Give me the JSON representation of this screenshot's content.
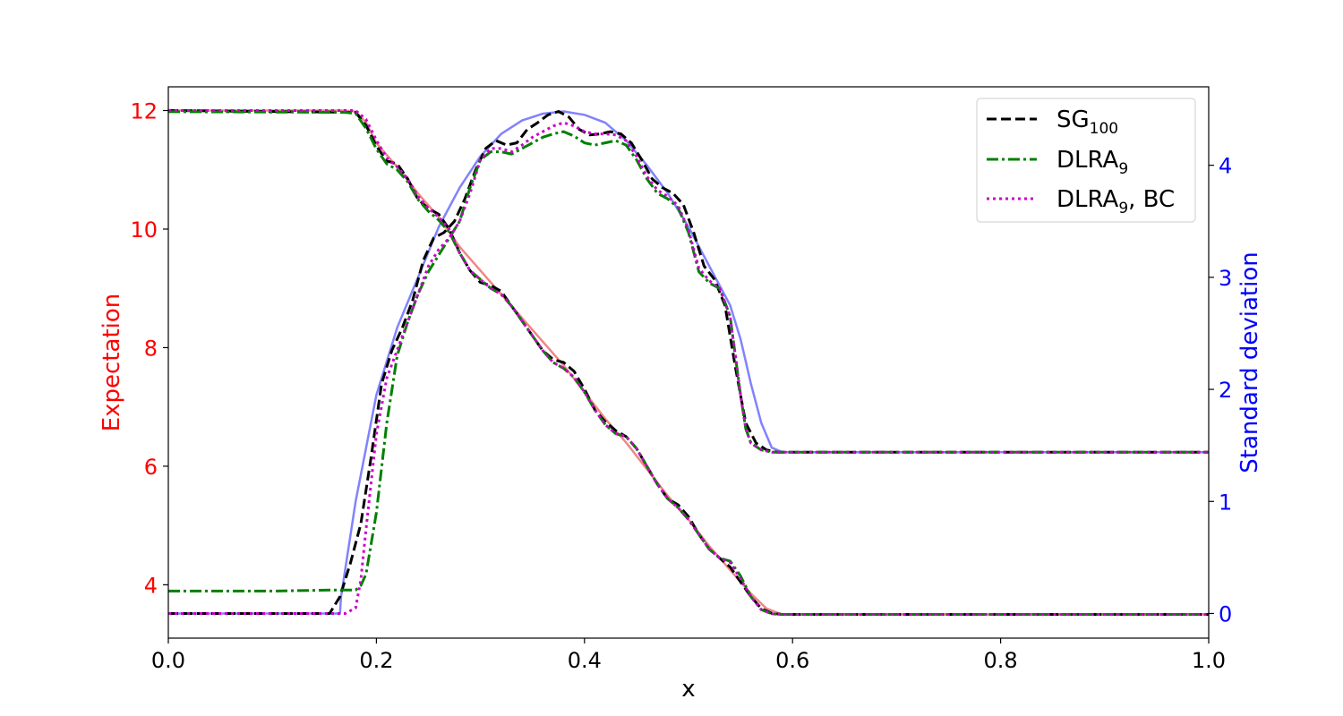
{
  "chart_data": {
    "type": "line",
    "xlabel": "x",
    "ylabel_left": "Expectation",
    "ylabel_right": "Standard deviation",
    "xlim": [
      0.0,
      1.0
    ],
    "ylim_left": [
      3.1,
      12.4
    ],
    "ylim_right": [
      -0.22,
      4.7
    ],
    "x_ticks": [
      "0.0",
      "0.2",
      "0.4",
      "0.6",
      "0.8",
      "1.0"
    ],
    "left_ticks": [
      "4",
      "6",
      "8",
      "10",
      "12"
    ],
    "right_ticks": [
      "0",
      "1",
      "2",
      "3",
      "4"
    ],
    "grid": false,
    "legend_position": "upper right",
    "colors": {
      "left_axis": "#ff0000",
      "right_axis": "#0000ff",
      "reference_expectation": "#f08080",
      "reference_std": "#7b7bff",
      "sg": "#000000",
      "dlra": "#008000",
      "dlra_bc": "#cc00cc"
    },
    "legend": [
      {
        "base": "SG",
        "sub": "100",
        "suffix": "",
        "style": "dashed",
        "color": "#000000"
      },
      {
        "base": "DLRA",
        "sub": "9",
        "suffix": "",
        "style": "dashdot",
        "color": "#008000"
      },
      {
        "base": "DLRA",
        "sub": "9",
        "suffix": ", BC",
        "style": "dotted",
        "color": "#cc00cc"
      }
    ],
    "series": [
      {
        "axis": "left",
        "color": "#f08080",
        "style": "solid",
        "x": [
          0.0,
          0.17,
          0.18,
          0.19,
          0.2,
          0.22,
          0.24,
          0.26,
          0.28,
          0.3,
          0.32,
          0.34,
          0.36,
          0.38,
          0.4,
          0.42,
          0.44,
          0.46,
          0.48,
          0.5,
          0.52,
          0.54,
          0.56,
          0.575,
          0.59,
          0.6,
          1.0
        ],
        "y": [
          12.0,
          12.0,
          11.98,
          11.8,
          11.45,
          11.05,
          10.6,
          10.2,
          9.7,
          9.3,
          8.9,
          8.5,
          8.1,
          7.7,
          7.25,
          6.8,
          6.4,
          5.95,
          5.5,
          5.1,
          4.65,
          4.25,
          3.85,
          3.6,
          3.5,
          3.5,
          3.5
        ]
      },
      {
        "axis": "right",
        "color": "#7b7bff",
        "style": "solid",
        "x": [
          0.0,
          0.165,
          0.166,
          0.18,
          0.2,
          0.22,
          0.24,
          0.26,
          0.28,
          0.3,
          0.32,
          0.34,
          0.36,
          0.38,
          0.4,
          0.42,
          0.44,
          0.46,
          0.48,
          0.5,
          0.52,
          0.54,
          0.55,
          0.56,
          0.57,
          0.58,
          0.59,
          0.6,
          1.0
        ],
        "y": [
          0.0,
          0.0,
          0.15,
          1.0,
          1.95,
          2.55,
          3.0,
          3.45,
          3.8,
          4.08,
          4.28,
          4.4,
          4.46,
          4.48,
          4.45,
          4.38,
          4.22,
          4.0,
          3.75,
          3.45,
          3.1,
          2.75,
          2.45,
          2.05,
          1.7,
          1.48,
          1.44,
          1.44,
          1.44
        ]
      },
      {
        "axis": "left",
        "color": "#000000",
        "style": "dashed",
        "x": [
          0.0,
          0.18,
          0.19,
          0.2,
          0.21,
          0.22,
          0.23,
          0.24,
          0.25,
          0.26,
          0.27,
          0.28,
          0.29,
          0.3,
          0.31,
          0.32,
          0.33,
          0.34,
          0.35,
          0.36,
          0.37,
          0.38,
          0.39,
          0.4,
          0.41,
          0.42,
          0.43,
          0.44,
          0.45,
          0.46,
          0.47,
          0.48,
          0.49,
          0.5,
          0.51,
          0.52,
          0.53,
          0.54,
          0.55,
          0.56,
          0.57,
          0.58,
          0.59,
          1.0
        ],
        "y": [
          12.0,
          11.97,
          11.75,
          11.4,
          11.15,
          11.1,
          10.85,
          10.5,
          10.35,
          10.25,
          10.0,
          9.6,
          9.3,
          9.1,
          9.05,
          8.95,
          8.7,
          8.45,
          8.2,
          7.95,
          7.8,
          7.75,
          7.6,
          7.3,
          6.95,
          6.75,
          6.6,
          6.5,
          6.3,
          6.0,
          5.7,
          5.45,
          5.35,
          5.15,
          4.85,
          4.6,
          4.45,
          4.3,
          4.05,
          3.8,
          3.6,
          3.52,
          3.5,
          3.5
        ]
      },
      {
        "axis": "right",
        "color": "#000000",
        "style": "dashed",
        "x": [
          0.0,
          0.155,
          0.165,
          0.175,
          0.185,
          0.195,
          0.205,
          0.215,
          0.225,
          0.235,
          0.245,
          0.255,
          0.265,
          0.275,
          0.285,
          0.295,
          0.305,
          0.315,
          0.325,
          0.335,
          0.345,
          0.355,
          0.365,
          0.375,
          0.385,
          0.395,
          0.405,
          0.415,
          0.425,
          0.435,
          0.445,
          0.455,
          0.465,
          0.475,
          0.485,
          0.495,
          0.505,
          0.515,
          0.525,
          0.535,
          0.545,
          0.555,
          0.565,
          0.575,
          0.585,
          0.595,
          1.0
        ],
        "y": [
          0.0,
          0.0,
          0.15,
          0.45,
          0.8,
          1.4,
          2.05,
          2.35,
          2.55,
          2.8,
          3.15,
          3.35,
          3.4,
          3.5,
          3.7,
          3.95,
          4.15,
          4.22,
          4.18,
          4.2,
          4.32,
          4.38,
          4.45,
          4.48,
          4.43,
          4.32,
          4.27,
          4.28,
          4.3,
          4.28,
          4.2,
          4.05,
          3.88,
          3.8,
          3.75,
          3.65,
          3.4,
          3.1,
          2.98,
          2.75,
          2.2,
          1.7,
          1.52,
          1.46,
          1.44,
          1.44,
          1.44
        ]
      },
      {
        "axis": "left",
        "color": "#008000",
        "style": "dashdot",
        "x": [
          0.0,
          0.17,
          0.18,
          0.19,
          0.2,
          0.21,
          0.22,
          0.23,
          0.24,
          0.25,
          0.26,
          0.27,
          0.28,
          0.29,
          0.3,
          0.31,
          0.32,
          0.33,
          0.34,
          0.35,
          0.36,
          0.37,
          0.38,
          0.39,
          0.4,
          0.41,
          0.42,
          0.43,
          0.44,
          0.45,
          0.46,
          0.47,
          0.48,
          0.49,
          0.5,
          0.51,
          0.52,
          0.53,
          0.54,
          0.55,
          0.56,
          0.57,
          0.58,
          0.59,
          1.0
        ],
        "y": [
          11.98,
          11.97,
          11.95,
          11.7,
          11.35,
          11.1,
          11.0,
          10.8,
          10.5,
          10.3,
          10.15,
          9.95,
          9.6,
          9.3,
          9.15,
          9.0,
          8.9,
          8.7,
          8.45,
          8.2,
          7.95,
          7.75,
          7.65,
          7.5,
          7.25,
          6.95,
          6.7,
          6.55,
          6.5,
          6.3,
          6.0,
          5.7,
          5.45,
          5.3,
          5.1,
          4.85,
          4.6,
          4.45,
          4.4,
          4.15,
          3.8,
          3.58,
          3.51,
          3.5,
          3.5
        ]
      },
      {
        "axis": "right",
        "color": "#008000",
        "style": "dashdot",
        "x": [
          0.0,
          0.1,
          0.16,
          0.18,
          0.185,
          0.19,
          0.2,
          0.21,
          0.22,
          0.23,
          0.24,
          0.25,
          0.26,
          0.27,
          0.28,
          0.29,
          0.3,
          0.31,
          0.32,
          0.33,
          0.34,
          0.35,
          0.36,
          0.37,
          0.38,
          0.39,
          0.4,
          0.41,
          0.42,
          0.43,
          0.44,
          0.45,
          0.46,
          0.47,
          0.48,
          0.49,
          0.5,
          0.51,
          0.52,
          0.53,
          0.54,
          0.545,
          0.55,
          0.555,
          0.56,
          0.57,
          0.58,
          0.59,
          1.0
        ],
        "y": [
          0.2,
          0.2,
          0.21,
          0.21,
          0.25,
          0.35,
          0.9,
          1.7,
          2.3,
          2.6,
          2.85,
          3.05,
          3.2,
          3.35,
          3.5,
          3.8,
          4.05,
          4.12,
          4.12,
          4.1,
          4.15,
          4.2,
          4.25,
          4.28,
          4.3,
          4.26,
          4.2,
          4.18,
          4.2,
          4.22,
          4.18,
          4.05,
          3.88,
          3.75,
          3.7,
          3.62,
          3.4,
          3.05,
          2.95,
          2.9,
          2.65,
          2.3,
          1.95,
          1.65,
          1.52,
          1.46,
          1.44,
          1.44,
          1.44
        ]
      },
      {
        "axis": "left",
        "color": "#cc00cc",
        "style": "dotted",
        "x": [
          0.0,
          0.18,
          0.19,
          0.2,
          0.21,
          0.22,
          0.23,
          0.24,
          0.25,
          0.26,
          0.27,
          0.28,
          0.29,
          0.3,
          0.31,
          0.32,
          0.33,
          0.34,
          0.35,
          0.36,
          0.37,
          0.38,
          0.39,
          0.4,
          0.41,
          0.42,
          0.43,
          0.44,
          0.45,
          0.46,
          0.47,
          0.48,
          0.49,
          0.5,
          0.51,
          0.52,
          0.53,
          0.54,
          0.55,
          0.56,
          0.57,
          0.58,
          0.59,
          1.0
        ],
        "y": [
          12.0,
          12.0,
          11.85,
          11.5,
          11.2,
          11.05,
          10.85,
          10.55,
          10.35,
          10.2,
          10.0,
          9.6,
          9.3,
          9.15,
          9.0,
          8.9,
          8.7,
          8.45,
          8.2,
          7.95,
          7.75,
          7.65,
          7.5,
          7.25,
          6.95,
          6.7,
          6.55,
          6.5,
          6.3,
          6.0,
          5.7,
          5.45,
          5.3,
          5.1,
          4.85,
          4.6,
          4.45,
          4.38,
          4.1,
          3.8,
          3.58,
          3.51,
          3.5,
          3.5
        ]
      },
      {
        "axis": "right",
        "color": "#cc00cc",
        "style": "dotted",
        "x": [
          0.0,
          0.17,
          0.18,
          0.185,
          0.19,
          0.2,
          0.21,
          0.22,
          0.23,
          0.24,
          0.25,
          0.26,
          0.27,
          0.28,
          0.29,
          0.3,
          0.31,
          0.32,
          0.33,
          0.34,
          0.35,
          0.36,
          0.37,
          0.38,
          0.39,
          0.4,
          0.41,
          0.42,
          0.43,
          0.44,
          0.45,
          0.46,
          0.47,
          0.48,
          0.49,
          0.5,
          0.51,
          0.52,
          0.53,
          0.54,
          0.545,
          0.55,
          0.555,
          0.56,
          0.57,
          0.58,
          0.59,
          1.0
        ],
        "y": [
          0.0,
          0.0,
          0.05,
          0.3,
          0.75,
          1.6,
          2.1,
          2.35,
          2.6,
          2.85,
          3.1,
          3.25,
          3.35,
          3.5,
          3.75,
          4.05,
          4.15,
          4.15,
          4.12,
          4.18,
          4.25,
          4.3,
          4.35,
          4.38,
          4.35,
          4.3,
          4.28,
          4.28,
          4.27,
          4.22,
          4.08,
          3.9,
          3.78,
          3.72,
          3.64,
          3.42,
          3.08,
          2.97,
          2.9,
          2.65,
          2.3,
          1.95,
          1.65,
          1.52,
          1.46,
          1.44,
          1.44,
          1.44
        ]
      }
    ]
  }
}
